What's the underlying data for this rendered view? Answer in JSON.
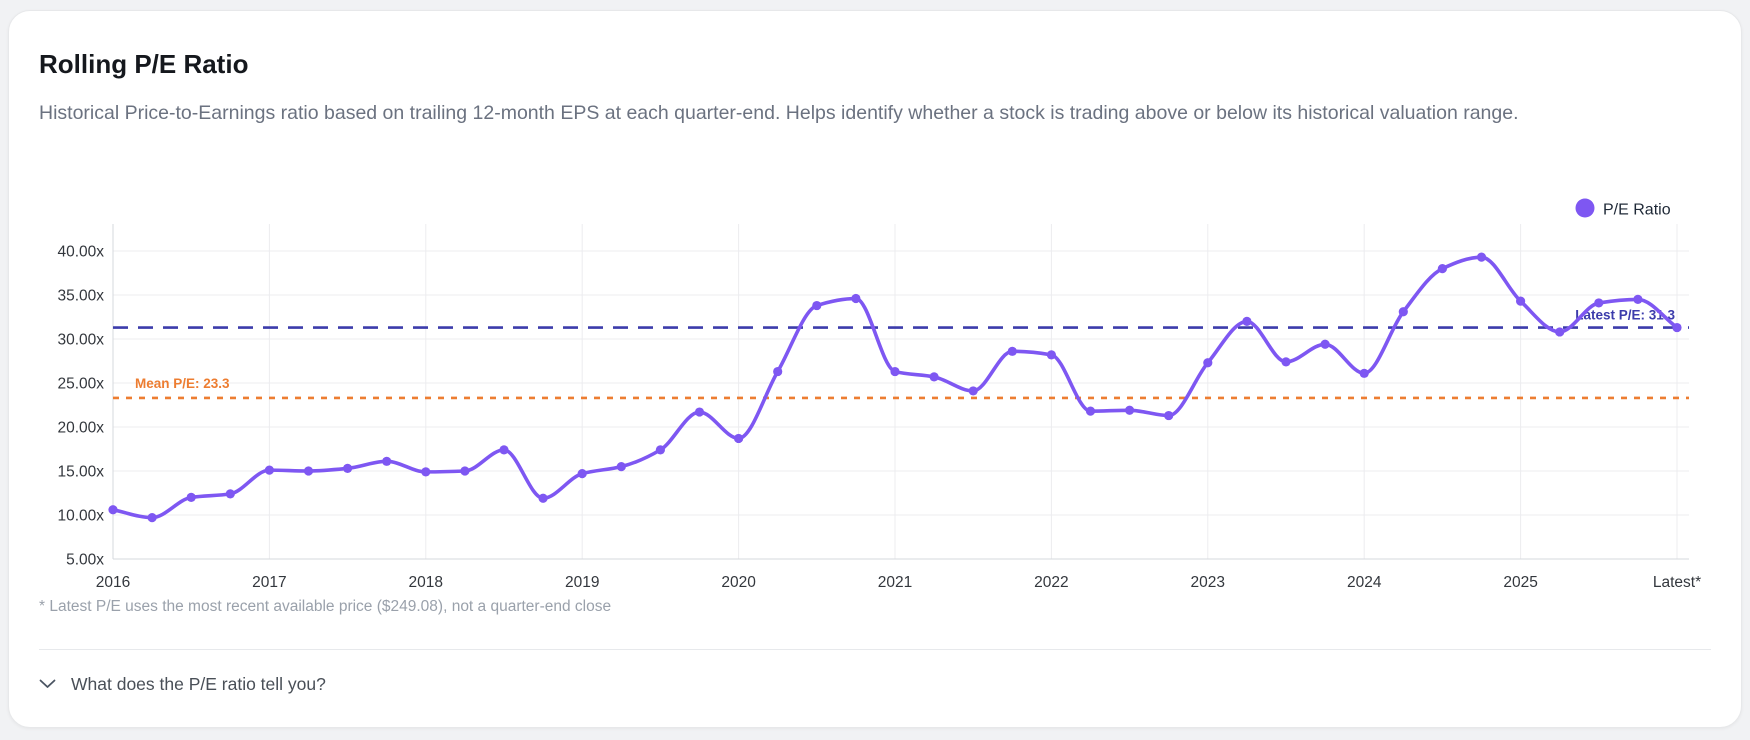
{
  "card": {
    "title": "Rolling P/E Ratio",
    "description": "Historical Price-to-Earnings ratio based on trailing 12-month EPS at each quarter-end. Helps identify whether a stock is trading above or below its historical valuation range.",
    "footnote": "* Latest P/E uses the most recent available price ($249.08), not a quarter-end close",
    "expander_label": "What does the P/E ratio tell you?"
  },
  "chart_data": {
    "type": "line",
    "title": "Rolling P/E Ratio",
    "legend": {
      "label": "P/E Ratio",
      "position": "top-right"
    },
    "grid": true,
    "ylim": [
      5,
      42
    ],
    "y_tick_values": [
      5,
      10,
      15,
      20,
      25,
      30,
      35,
      40
    ],
    "y_tick_labels": [
      "5.00x",
      "10.00x",
      "15.00x",
      "20.00x",
      "25.00x",
      "30.00x",
      "35.00x",
      "40.00x"
    ],
    "x_tick_labels": [
      "2016",
      "2017",
      "2018",
      "2019",
      "2020",
      "2021",
      "2022",
      "2023",
      "2024",
      "2025",
      "Latest*"
    ],
    "series": [
      {
        "name": "P/E Ratio",
        "color": "#7e57f2",
        "x": [
          "Q1 2016",
          "Q2 2016",
          "Q3 2016",
          "Q4 2016",
          "Q1 2017",
          "Q2 2017",
          "Q3 2017",
          "Q4 2017",
          "Q1 2018",
          "Q2 2018",
          "Q3 2018",
          "Q4 2018",
          "Q1 2019",
          "Q2 2019",
          "Q3 2019",
          "Q4 2019",
          "Q1 2020",
          "Q2 2020",
          "Q3 2020",
          "Q4 2020",
          "Q1 2021",
          "Q2 2021",
          "Q3 2021",
          "Q4 2021",
          "Q1 2022",
          "Q2 2022",
          "Q3 2022",
          "Q4 2022",
          "Q1 2023",
          "Q2 2023",
          "Q3 2023",
          "Q4 2023",
          "Q1 2024",
          "Q2 2024",
          "Q3 2024",
          "Q4 2024",
          "Q1 2025",
          "Q2 2025",
          "Q3 2025",
          "Q4 2025",
          "Latest"
        ],
        "values": [
          10.6,
          9.7,
          12.0,
          12.4,
          15.1,
          15.0,
          15.3,
          16.1,
          14.9,
          15.0,
          17.4,
          11.9,
          14.7,
          15.5,
          17.4,
          21.7,
          18.7,
          26.3,
          33.8,
          34.6,
          26.3,
          25.7,
          24.1,
          28.6,
          28.2,
          21.8,
          21.9,
          21.3,
          27.3,
          32.0,
          27.4,
          29.4,
          26.1,
          33.1,
          38.0,
          39.3,
          34.3,
          30.8,
          34.1,
          34.5,
          31.3
        ]
      }
    ],
    "reference_lines": [
      {
        "id": "mean",
        "label": "Mean P/E: 23.3",
        "value": 23.3,
        "color": "#ed7d31",
        "style": "dashed"
      },
      {
        "id": "latest",
        "label": "Latest P/E: 31.3",
        "value": 31.3,
        "color": "#3c3cab",
        "style": "dashed"
      }
    ]
  }
}
